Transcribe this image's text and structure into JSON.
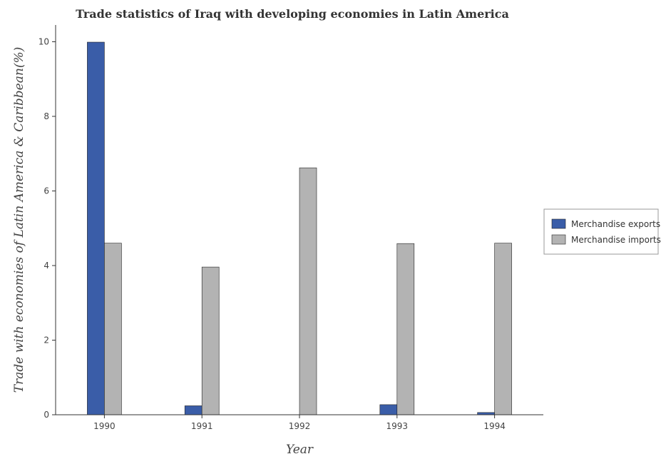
{
  "chart_data": {
    "type": "bar",
    "title": "Trade statistics of Iraq with developing economies in Latin America",
    "xlabel": "Year",
    "ylabel": "Trade with economies of Latin America & Caribbean(%)",
    "categories": [
      "1990",
      "1991",
      "1992",
      "1993",
      "1994"
    ],
    "ylim": [
      0,
      10.45
    ],
    "yticks": [
      0,
      2,
      4,
      6,
      8,
      10
    ],
    "grid": false,
    "legend_position": "right",
    "series": [
      {
        "name": "Merchandise exports",
        "color": "#3a5da8",
        "values": [
          9.99,
          0.24,
          0.0,
          0.27,
          0.06
        ]
      },
      {
        "name": "Merchandise imports",
        "color": "#b3b3b3",
        "values": [
          4.6,
          3.96,
          6.62,
          4.59,
          4.6
        ]
      }
    ]
  }
}
